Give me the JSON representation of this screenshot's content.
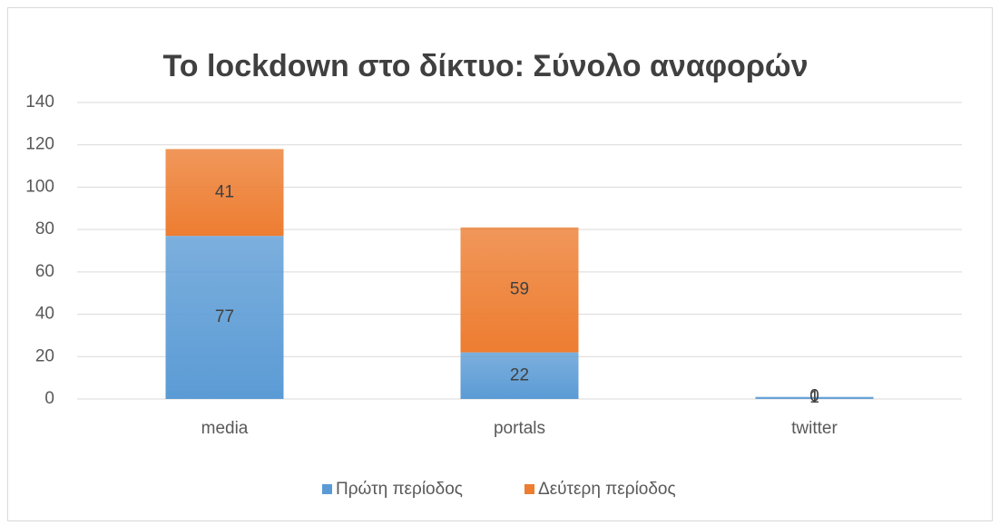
{
  "chart_data": {
    "type": "stacked_bar",
    "title": "Το lockdown στο δίκτυο: Σύνολο αναφορών",
    "categories": [
      "media",
      "portals",
      "twitter"
    ],
    "series": [
      {
        "name": "Πρώτη περίοδος",
        "color": "#5b9bd5",
        "values": [
          77,
          22,
          1
        ]
      },
      {
        "name": "Δεύτερη περίοδος",
        "color": "#ed7d31",
        "values": [
          41,
          59,
          0
        ]
      }
    ],
    "ylim": [
      0,
      140
    ],
    "yticks": [
      0,
      20,
      40,
      60,
      80,
      100,
      120,
      140
    ],
    "grid": true,
    "legend": "bottom"
  }
}
